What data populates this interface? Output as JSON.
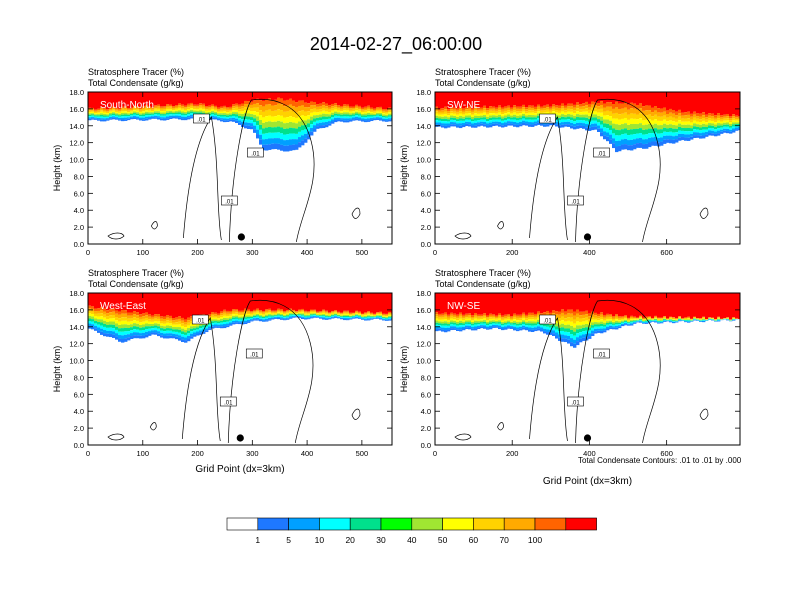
{
  "figure": {
    "title": "2014-02-27_06:00:00",
    "contour_note": "Total Condensate Contours: .01 to .01 by .000"
  },
  "colors": {
    "fill_scale": [
      "#ffffff",
      "#1e78ff",
      "#00a0ff",
      "#00ffff",
      "#00e08c",
      "#00ff00",
      "#a0e632",
      "#ffff00",
      "#ffd200",
      "#ffaa00",
      "#ff6400",
      "#ff0000"
    ],
    "marker": "#000000",
    "contour": "#000000"
  },
  "chart_data": [
    {
      "type": "heatmap",
      "panel": "South-North",
      "title_lines": [
        "Stratosphere Tracer   (%)",
        "Total Condensate   (g/kg)"
      ],
      "ylabel": "Height (km)",
      "xlabel": "",
      "xlim": [
        0,
        555
      ],
      "ylim": [
        0,
        18
      ],
      "xticks": [
        0,
        100,
        200,
        300,
        400,
        500
      ],
      "yticks": [
        "0.0",
        "2.0",
        "4.0",
        "6.0",
        "8.0",
        "10.0",
        "12.0",
        "14.0",
        "16.0",
        "18.0"
      ],
      "marker_x": 280,
      "contour_label": ".01",
      "profile": {
        "red_top": [
          [
            0,
            16.0
          ],
          [
            200,
            16.6
          ],
          [
            250,
            16.2
          ],
          [
            300,
            17.0
          ],
          [
            350,
            17.2
          ],
          [
            400,
            16.8
          ],
          [
            555,
            16.0
          ]
        ],
        "base": [
          [
            0,
            14.6
          ],
          [
            200,
            14.8
          ],
          [
            260,
            14.5
          ],
          [
            300,
            13.5
          ],
          [
            320,
            11.2
          ],
          [
            380,
            11.0
          ],
          [
            420,
            13.6
          ],
          [
            460,
            14.5
          ],
          [
            555,
            14.6
          ]
        ]
      }
    },
    {
      "type": "heatmap",
      "panel": "SW-NE",
      "title_lines": [
        "Stratosphere Tracer   (%)",
        "Total Condensate   (g/kg)"
      ],
      "ylabel": "Height (km)",
      "xlabel": "",
      "xlim": [
        0,
        790
      ],
      "ylim": [
        0,
        18
      ],
      "xticks": [
        0,
        200,
        400,
        600
      ],
      "yticks": [
        "0.0",
        "2.0",
        "4.0",
        "6.0",
        "8.0",
        "10.0",
        "12.0",
        "14.0",
        "16.0",
        "18.0"
      ],
      "marker_x": 395,
      "contour_label": ".01",
      "profile": {
        "red_top": [
          [
            0,
            16.1
          ],
          [
            300,
            16.4
          ],
          [
            420,
            16.8
          ],
          [
            520,
            16.6
          ],
          [
            650,
            15.6
          ],
          [
            790,
            15.2
          ]
        ],
        "base": [
          [
            0,
            13.8
          ],
          [
            300,
            14.0
          ],
          [
            420,
            13.4
          ],
          [
            470,
            11.0
          ],
          [
            550,
            11.4
          ],
          [
            640,
            12.2
          ],
          [
            720,
            12.8
          ],
          [
            790,
            13.4
          ]
        ]
      }
    },
    {
      "type": "heatmap",
      "panel": "West-East",
      "title_lines": [
        "Stratosphere Tracer   (%)",
        "Total Condensate   (g/kg)"
      ],
      "ylabel": "Height (km)",
      "xlabel": "Grid Point (dx=3km)",
      "xlim": [
        0,
        555
      ],
      "ylim": [
        0,
        18
      ],
      "xticks": [
        0,
        100,
        200,
        300,
        400,
        500
      ],
      "yticks": [
        "0.0",
        "2.0",
        "4.0",
        "6.0",
        "8.0",
        "10.0",
        "12.0",
        "14.0",
        "16.0",
        "18.0"
      ],
      "marker_x": 278,
      "contour_label": ".01",
      "profile": {
        "red_top": [
          [
            0,
            16.4
          ],
          [
            100,
            15.6
          ],
          [
            180,
            15.0
          ],
          [
            260,
            16.0
          ],
          [
            380,
            16.0
          ],
          [
            555,
            15.6
          ]
        ],
        "base": [
          [
            0,
            13.8
          ],
          [
            60,
            12.2
          ],
          [
            120,
            13.0
          ],
          [
            180,
            12.2
          ],
          [
            220,
            13.6
          ],
          [
            300,
            14.6
          ],
          [
            380,
            15.0
          ],
          [
            555,
            14.8
          ]
        ]
      }
    },
    {
      "type": "heatmap",
      "panel": "NW-SE",
      "title_lines": [
        "Stratosphere Tracer   (%)",
        "Total Condensate   (g/kg)"
      ],
      "ylabel": "Height (km)",
      "xlabel": "Grid Point (dx=3km)",
      "xlim": [
        0,
        790
      ],
      "ylim": [
        0,
        18
      ],
      "xticks": [
        0,
        200,
        400,
        600
      ],
      "yticks": [
        "0.0",
        "2.0",
        "4.0",
        "6.0",
        "8.0",
        "10.0",
        "12.0",
        "14.0",
        "16.0",
        "18.0"
      ],
      "marker_x": 395,
      "contour_label": ".01",
      "profile": {
        "red_top": [
          [
            0,
            15.6
          ],
          [
            200,
            15.4
          ],
          [
            350,
            16.0
          ],
          [
            500,
            15.2
          ],
          [
            790,
            15.0
          ]
        ],
        "base": [
          [
            0,
            13.4
          ],
          [
            150,
            13.8
          ],
          [
            280,
            13.4
          ],
          [
            360,
            11.6
          ],
          [
            420,
            13.2
          ],
          [
            520,
            14.4
          ],
          [
            790,
            14.8
          ]
        ]
      }
    }
  ],
  "colorbar": {
    "labels": [
      "1",
      "5",
      "10",
      "20",
      "30",
      "40",
      "50",
      "60",
      "70",
      "100"
    ]
  }
}
